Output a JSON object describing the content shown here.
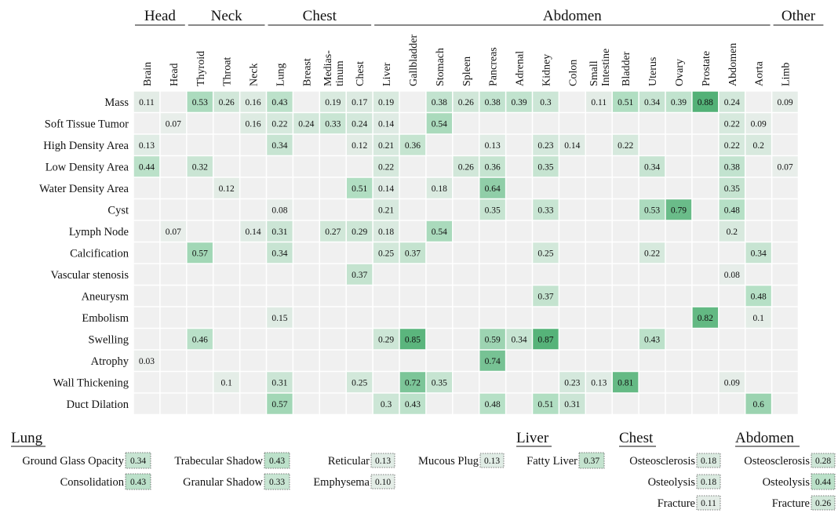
{
  "chart_data": {
    "type": "heatmap",
    "title": "",
    "groups": [
      {
        "name": "Head",
        "start": 0,
        "end": 1
      },
      {
        "name": "Neck",
        "start": 2,
        "end": 4
      },
      {
        "name": "Chest",
        "start": 5,
        "end": 8
      },
      {
        "name": "Abdomen",
        "start": 9,
        "end": 23
      },
      {
        "name": "Other",
        "start": 24,
        "end": 25
      }
    ],
    "columns": [
      [
        "Brain"
      ],
      [
        "Head"
      ],
      [
        "Thyroid"
      ],
      [
        "Throat"
      ],
      [
        "Neck"
      ],
      [
        "Lung"
      ],
      [
        "Breast"
      ],
      [
        "Medias-",
        "tinum"
      ],
      [
        "Chest"
      ],
      [
        "Liver"
      ],
      [
        "Gallbladder"
      ],
      [
        "Stomach"
      ],
      [
        "Spleen"
      ],
      [
        "Pancreas"
      ],
      [
        "Adrenal"
      ],
      [
        "Kidney"
      ],
      [
        "Colon"
      ],
      [
        "Small",
        "Intestine"
      ],
      [
        "Bladder"
      ],
      [
        "Uterus"
      ],
      [
        "Ovary"
      ],
      [
        "Prostate"
      ],
      [
        "Abdomen"
      ],
      [
        "Aorta"
      ],
      [
        "Limb"
      ]
    ],
    "rows": [
      "Mass",
      "Soft Tissue Tumor",
      "High Density Area",
      "Low Density Area",
      "Water Density Area",
      "Cyst",
      "Lymph Node",
      "Calcification",
      "Vascular stenosis",
      "Aneurysm",
      "Embolism",
      "Swelling",
      "Atrophy",
      "Wall Thickening",
      "Duct Dilation"
    ],
    "values": [
      [
        "0.11",
        "",
        "0.53",
        "0.26",
        "0.16",
        "0.43",
        "",
        "0.19",
        "0.17",
        "0.19",
        "",
        "0.38",
        "0.26",
        "0.38",
        "0.39",
        "0.3",
        "",
        "0.11",
        "0.51",
        "0.34",
        "0.39",
        "0.88",
        "0.24",
        "",
        "0.09"
      ],
      [
        "",
        "0.07",
        "",
        "",
        "0.16",
        "0.22",
        "0.24",
        "0.33",
        "0.24",
        "0.14",
        "",
        "0.54",
        "",
        "",
        "",
        "",
        "",
        "",
        "",
        "",
        "",
        "",
        "0.22",
        "0.09",
        ""
      ],
      [
        "0.13",
        "",
        "",
        "",
        "",
        "0.34",
        "",
        "",
        "0.12",
        "0.21",
        "0.36",
        "",
        "",
        "0.13",
        "",
        "0.23",
        "0.14",
        "",
        "0.22",
        "",
        "",
        "",
        "0.22",
        "0.2",
        ""
      ],
      [
        "0.44",
        "",
        "0.32",
        "",
        "",
        "",
        "",
        "",
        "",
        "0.22",
        "",
        "",
        "0.26",
        "0.36",
        "",
        "0.35",
        "",
        "",
        "",
        "0.34",
        "",
        "",
        "0.38",
        "",
        "0.07"
      ],
      [
        "",
        "",
        "",
        "0.12",
        "",
        "",
        "",
        "",
        "0.51",
        "0.14",
        "",
        "0.18",
        "",
        "0.64",
        "",
        "",
        "",
        "",
        "",
        "",
        "",
        "",
        "0.35",
        "",
        ""
      ],
      [
        "",
        "",
        "",
        "",
        "",
        "0.08",
        "",
        "",
        "",
        "0.21",
        "",
        "",
        "",
        "0.35",
        "",
        "0.33",
        "",
        "",
        "",
        "0.53",
        "0.79",
        "",
        "0.48",
        "",
        ""
      ],
      [
        "",
        "0.07",
        "",
        "",
        "0.14",
        "0.31",
        "",
        "0.27",
        "0.29",
        "0.18",
        "",
        "0.54",
        "",
        "",
        "",
        "",
        "",
        "",
        "",
        "",
        "",
        "",
        "0.2",
        "",
        ""
      ],
      [
        "",
        "",
        "0.57",
        "",
        "",
        "0.34",
        "",
        "",
        "",
        "0.25",
        "0.37",
        "",
        "",
        "",
        "",
        "0.25",
        "",
        "",
        "",
        "0.22",
        "",
        "",
        "",
        "0.34",
        ""
      ],
      [
        "",
        "",
        "",
        "",
        "",
        "",
        "",
        "",
        "0.37",
        "",
        "",
        "",
        "",
        "",
        "",
        "",
        "",
        "",
        "",
        "",
        "",
        "",
        "0.08",
        "",
        ""
      ],
      [
        "",
        "",
        "",
        "",
        "",
        "",
        "",
        "",
        "",
        "",
        "",
        "",
        "",
        "",
        "",
        "0.37",
        "",
        "",
        "",
        "",
        "",
        "",
        "",
        "0.48",
        ""
      ],
      [
        "",
        "",
        "",
        "",
        "",
        "0.15",
        "",
        "",
        "",
        "",
        "",
        "",
        "",
        "",
        "",
        "",
        "",
        "",
        "",
        "",
        "",
        "0.82",
        "",
        "0.1",
        ""
      ],
      [
        "",
        "",
        "0.46",
        "",
        "",
        "",
        "",
        "",
        "",
        "0.29",
        "0.85",
        "",
        "",
        "0.59",
        "0.34",
        "0.87",
        "",
        "",
        "",
        "0.43",
        "",
        "",
        "",
        "",
        ""
      ],
      [
        "0.03",
        "",
        "",
        "",
        "",
        "",
        "",
        "",
        "",
        "",
        "",
        "",
        "",
        "0.74",
        "",
        "",
        "",
        "",
        "",
        "",
        "",
        "",
        "",
        "",
        ""
      ],
      [
        "",
        "",
        "",
        "0.1",
        "",
        "0.31",
        "",
        "",
        "0.25",
        "",
        "0.72",
        "0.35",
        "",
        "",
        "",
        "",
        "0.23",
        "0.13",
        "0.81",
        "",
        "",
        "",
        "0.09",
        "",
        ""
      ],
      [
        "",
        "",
        "",
        "",
        "",
        "0.57",
        "",
        "",
        "",
        "0.3",
        "0.43",
        "",
        "",
        "0.48",
        "",
        "0.51",
        "0.31",
        "",
        "",
        "",
        "",
        "",
        "",
        "0.6",
        ""
      ]
    ],
    "extra_sections": [
      {
        "title": "Lung",
        "items": [
          {
            "label": "Ground Glass Opacity",
            "value": "0.34"
          },
          {
            "label": "Consolidation",
            "value": "0.43"
          },
          {
            "label": "Trabecular Shadow",
            "value": "0.43"
          },
          {
            "label": "Granular Shadow",
            "value": "0.33"
          },
          {
            "label": "Reticular",
            "value": "0.13"
          },
          {
            "label": "Emphysema",
            "value": "0.10"
          },
          {
            "label": "Mucous Plug",
            "value": "0.13"
          }
        ]
      },
      {
        "title": "Liver",
        "items": [
          {
            "label": "Fatty Liver",
            "value": "0.37"
          }
        ]
      },
      {
        "title": "Chest",
        "items": [
          {
            "label": "Osteosclerosis",
            "value": "0.18"
          },
          {
            "label": "Osteolysis",
            "value": "0.18"
          },
          {
            "label": "Fracture",
            "value": "0.11"
          }
        ]
      },
      {
        "title": "Abdomen",
        "items": [
          {
            "label": "Osteosclerosis",
            "value": "0.28"
          },
          {
            "label": "Osteolysis",
            "value": "0.44"
          },
          {
            "label": "Fracture",
            "value": "0.26"
          }
        ]
      }
    ],
    "color_scale": {
      "low": "#f0f0f0",
      "mid": "#b4dfc4",
      "high": "#35a35f"
    }
  }
}
